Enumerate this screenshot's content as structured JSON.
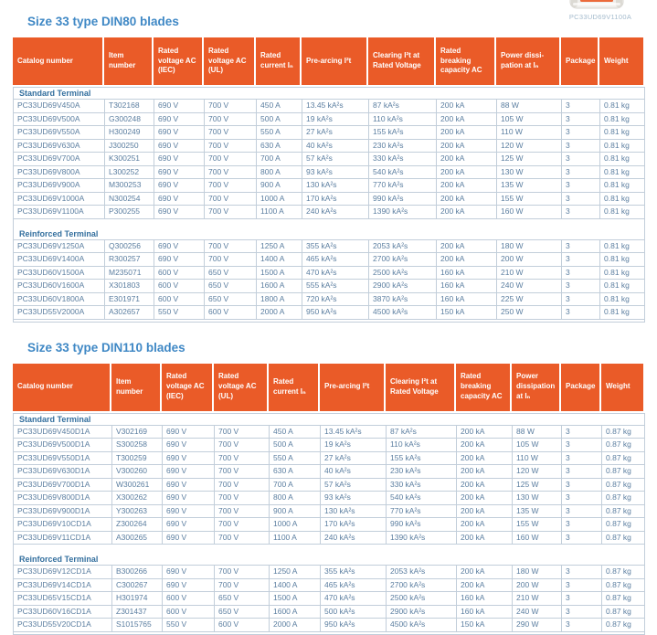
{
  "colors": {
    "accent_orange": "#EA5B28",
    "title_blue": "#3F88C5",
    "section_blue": "#336F9E",
    "row_text": "#5B7EA0",
    "table_border": "#C2CEDA",
    "caption_text": "#A4BBCD"
  },
  "product": {
    "caption": "PC33UD69V1100A"
  },
  "tables": [
    {
      "title": "Size 33 type DIN80 blades",
      "columns": [
        "Catalog number",
        "Item number",
        "Rated voltage AC (IEC)",
        "Rated voltage AC (UL)",
        "Rated current Iₙ",
        "Pre-arcing I²t",
        "Clearing I²t at Rated Voltage",
        "Rated breaking capacity AC",
        "Power dissi-pation at Iₙ",
        "Package",
        "Weight"
      ],
      "sections": [
        {
          "label": "Standard Terminal",
          "rows": [
            [
              "PC33UD69V450A",
              "T302168",
              "690 V",
              "700 V",
              "450 A",
              "13.45 kA²s",
              "87 kA²s",
              "200 kA",
              "88 W",
              "3",
              "0.81 kg"
            ],
            [
              "PC33UD69V500A",
              "G300248",
              "690 V",
              "700 V",
              "500 A",
              "19 kA²s",
              "110 kA²s",
              "200 kA",
              "105 W",
              "3",
              "0.81 kg"
            ],
            [
              "PC33UD69V550A",
              "H300249",
              "690 V",
              "700 V",
              "550 A",
              "27 kA²s",
              "155 kA²s",
              "200 kA",
              "110 W",
              "3",
              "0.81 kg"
            ],
            [
              "PC33UD69V630A",
              "J300250",
              "690 V",
              "700 V",
              "630 A",
              "40 kA²s",
              "230 kA²s",
              "200 kA",
              "120 W",
              "3",
              "0.81 kg"
            ],
            [
              "PC33UD69V700A",
              "K300251",
              "690 V",
              "700 V",
              "700 A",
              "57 kA²s",
              "330 kA²s",
              "200 kA",
              "125 W",
              "3",
              "0.81 kg"
            ],
            [
              "PC33UD69V800A",
              "L300252",
              "690 V",
              "700 V",
              "800 A",
              "93 kA²s",
              "540 kA²s",
              "200 kA",
              "130 W",
              "3",
              "0.81 kg"
            ],
            [
              "PC33UD69V900A",
              "M300253",
              "690 V",
              "700 V",
              "900 A",
              "130 kA²s",
              "770 kA²s",
              "200 kA",
              "135 W",
              "3",
              "0.81 kg"
            ],
            [
              "PC33UD69V1000A",
              "N300254",
              "690 V",
              "700 V",
              "1000 A",
              "170 kA²s",
              "990 kA²s",
              "200 kA",
              "155 W",
              "3",
              "0.81 kg"
            ],
            [
              "PC33UD69V1100A",
              "P300255",
              "690 V",
              "700 V",
              "1100 A",
              "240 kA²s",
              "1390 kA²s",
              "200 kA",
              "160 W",
              "3",
              "0.81 kg"
            ]
          ]
        },
        {
          "label": "Reinforced Terminal",
          "rows": [
            [
              "PC33UD69V1250A",
              "Q300256",
              "690 V",
              "700 V",
              "1250 A",
              "355 kA²s",
              "2053 kA²s",
              "200 kA",
              "180 W",
              "3",
              "0.81 kg"
            ],
            [
              "PC33UD69V1400A",
              "R300257",
              "690 V",
              "700 V",
              "1400 A",
              "465 kA²s",
              "2700 kA²s",
              "200 kA",
              "200 W",
              "3",
              "0.81 kg"
            ],
            [
              "PC33UD60V1500A",
              "M235071",
              "600 V",
              "650 V",
              "1500 A",
              "470 kA²s",
              "2500 kA²s",
              "160 kA",
              "210 W",
              "3",
              "0.81 kg"
            ],
            [
              "PC33UD60V1600A",
              "X301803",
              "600 V",
              "650 V",
              "1600 A",
              "555 kA²s",
              "2900 kA²s",
              "160 kA",
              "240 W",
              "3",
              "0.81 kg"
            ],
            [
              "PC33UD60V1800A",
              "E301971",
              "600 V",
              "650 V",
              "1800 A",
              "720 kA²s",
              "3870 kA²s",
              "160 kA",
              "225 W",
              "3",
              "0.81 kg"
            ],
            [
              "PC33UD55V2000A",
              "A302657",
              "550 V",
              "600 V",
              "2000 A",
              "950 kA²s",
              "4500 kA²s",
              "150 kA",
              "250 W",
              "3",
              "0.81 kg"
            ]
          ]
        }
      ]
    },
    {
      "title": "Size 33 type DIN110 blades",
      "columns": [
        "Catalog number",
        "Item number",
        "Rated voltage AC (IEC)",
        "Rated voltage AC (UL)",
        "Rated current Iₙ",
        "Pre-arcing I²t",
        "Clearing I²t at Rated Voltage",
        "Rated breaking capacity AC",
        "Power dissipation at Iₙ",
        "Package",
        "Weight"
      ],
      "sections": [
        {
          "label": "Standard Terminal",
          "rows": [
            [
              "PC33UD69V450D1A",
              "V302169",
              "690 V",
              "700 V",
              "450 A",
              "13.45 kA²s",
              "87 kA²s",
              "200 kA",
              "88 W",
              "3",
              "0.87 kg"
            ],
            [
              "PC33UD69V500D1A",
              "S300258",
              "690 V",
              "700 V",
              "500 A",
              "19 kA²s",
              "110 kA²s",
              "200 kA",
              "105 W",
              "3",
              "0.87 kg"
            ],
            [
              "PC33UD69V550D1A",
              "T300259",
              "690 V",
              "700 V",
              "550 A",
              "27 kA²s",
              "155 kA²s",
              "200 kA",
              "110 W",
              "3",
              "0.87 kg"
            ],
            [
              "PC33UD69V630D1A",
              "V300260",
              "690 V",
              "700 V",
              "630 A",
              "40 kA²s",
              "230 kA²s",
              "200 kA",
              "120 W",
              "3",
              "0.87 kg"
            ],
            [
              "PC33UD69V700D1A",
              "W300261",
              "690 V",
              "700 V",
              "700 A",
              "57 kA²s",
              "330 kA²s",
              "200 kA",
              "125 W",
              "3",
              "0.87 kg"
            ],
            [
              "PC33UD69V800D1A",
              "X300262",
              "690 V",
              "700 V",
              "800 A",
              "93 kA²s",
              "540 kA²s",
              "200 kA",
              "130 W",
              "3",
              "0.87 kg"
            ],
            [
              "PC33UD69V900D1A",
              "Y300263",
              "690 V",
              "700 V",
              "900 A",
              "130 kA²s",
              "770 kA²s",
              "200 kA",
              "135 W",
              "3",
              "0.87 kg"
            ],
            [
              "PC33UD69V10CD1A",
              "Z300264",
              "690 V",
              "700 V",
              "1000 A",
              "170 kA²s",
              "990 kA²s",
              "200 kA",
              "155 W",
              "3",
              "0.87 kg"
            ],
            [
              "PC33UD69V11CD1A",
              "A300265",
              "690 V",
              "700 V",
              "1100 A",
              "240 kA²s",
              "1390 kA²s",
              "200 kA",
              "160 W",
              "3",
              "0.87 kg"
            ]
          ]
        },
        {
          "label": "Reinforced Terminal",
          "rows": [
            [
              "PC33UD69V12CD1A",
              "B300266",
              "690 V",
              "700 V",
              "1250 A",
              "355 kA²s",
              "2053 kA²s",
              "200 kA",
              "180 W",
              "3",
              "0.87 kg"
            ],
            [
              "PC33UD69V14CD1A",
              "C300267",
              "690 V",
              "700 V",
              "1400 A",
              "465 kA²s",
              "2700 kA²s",
              "200 kA",
              "200 W",
              "3",
              "0.87 kg"
            ],
            [
              "PC33UD65V15CD1A",
              "H301974",
              "600 V",
              "650 V",
              "1500 A",
              "470 kA²s",
              "2500 kA²s",
              "160 kA",
              "210 W",
              "3",
              "0.87 kg"
            ],
            [
              "PC33UD60V16CD1A",
              "Z301437",
              "600 V",
              "650 V",
              "1600 A",
              "500 kA²s",
              "2900 kA²s",
              "160 kA",
              "240 W",
              "3",
              "0.87 kg"
            ],
            [
              "PC33UD55V20CD1A",
              "S1015765",
              "550 V",
              "600 V",
              "2000 A",
              "950 kA²s",
              "4500 kA²s",
              "150 kA",
              "290 W",
              "3",
              "0.87 kg"
            ]
          ]
        }
      ]
    }
  ]
}
